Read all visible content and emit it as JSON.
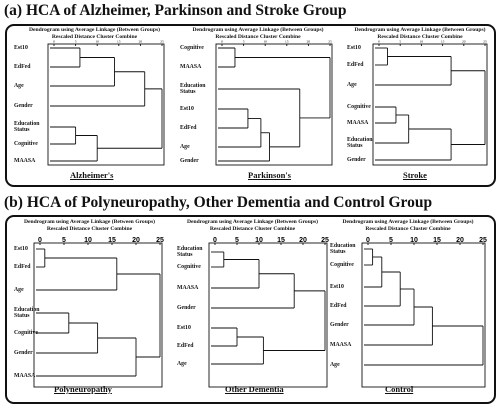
{
  "section_a": {
    "title": "(a) HCA of Alzheimer, Parkinson and Stroke Group"
  },
  "section_b": {
    "title": "(b) HCA of Polyneuropathy, Other Dementia and Control Group"
  },
  "dendrogram_title": "Dendrogram using Average Linkage (Between Groups)",
  "axis_label": "Rescaled  Distance Cluster Combine",
  "ticks": [
    "0",
    "5",
    "10",
    "15",
    "20",
    "25"
  ],
  "panels": [
    {
      "name": "Alzheimer's",
      "rows": [
        "Est10",
        "EdFed",
        "Age",
        "Gender",
        "Education\nStatus",
        "Cognitive",
        "MAASA"
      ]
    },
    {
      "name": "Parkinson's",
      "rows": [
        "Cognitive",
        "MAASA",
        "Education\nStatus",
        "Est10",
        "EdFed",
        "Age",
        "Gender"
      ]
    },
    {
      "name": "Stroke",
      "rows": [
        "Est10",
        "EdFed",
        "Age",
        "Cognitive",
        "MAASA",
        "Education\nStatus",
        "Gender"
      ]
    },
    {
      "name": "Polyneuropathy",
      "rows": [
        "Est10",
        "EdFed",
        "Age",
        "Education\nStatus",
        "Cognitive",
        "Gender",
        "MAASA"
      ]
    },
    {
      "name": "Other Dementia",
      "rows": [
        "Education\nStatus",
        "Cognitive",
        "MAASA",
        "Gender",
        "Est10",
        "EdFed",
        "Age"
      ]
    },
    {
      "name": "Control",
      "rows": [
        "Education\nStatus",
        "Cognitive",
        "Est10",
        "EdFed",
        "Gender",
        "MAASA",
        "Age"
      ]
    }
  ]
}
